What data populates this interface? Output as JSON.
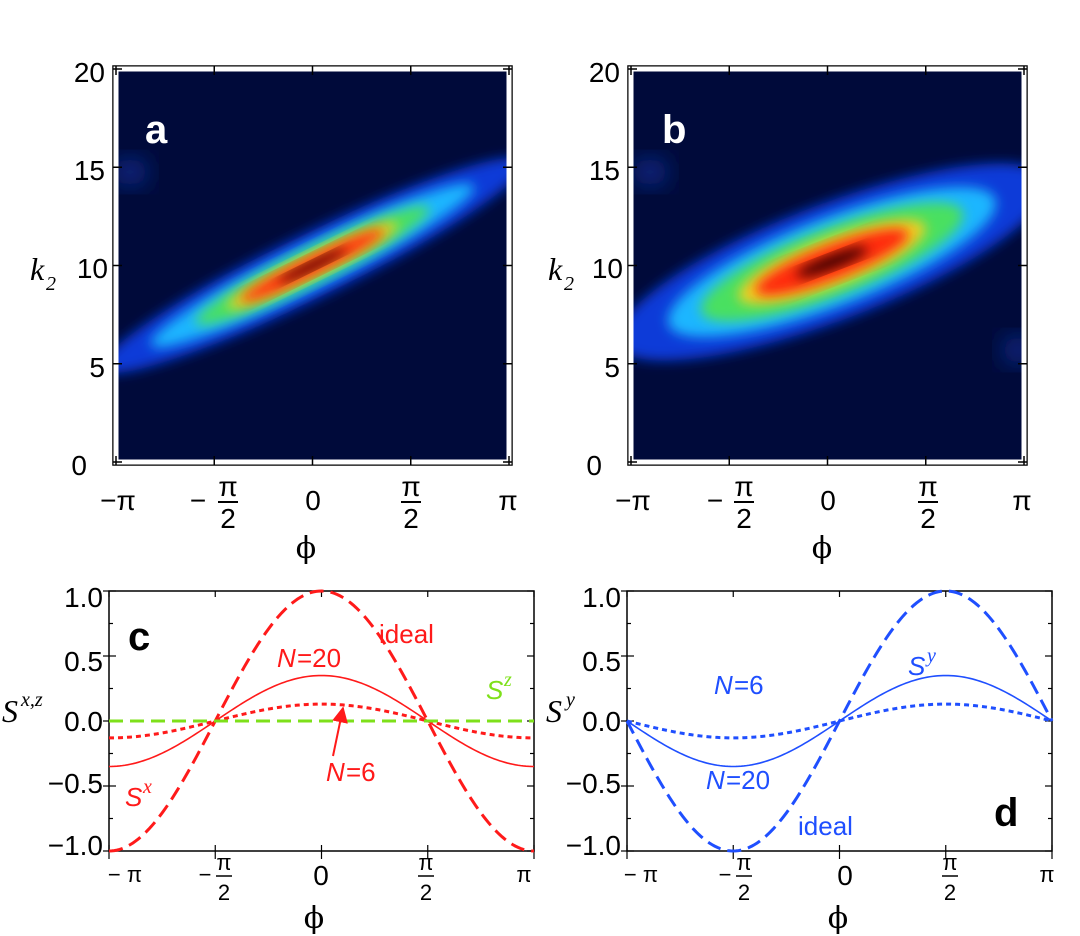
{
  "panel_labels": [
    "a",
    "b",
    "c",
    "d"
  ],
  "colors": {
    "red": "#ff1a1a",
    "blue": "#1f4fff",
    "green": "#7ee01a",
    "background": "#000a3a"
  },
  "chart_data": [
    {
      "id": "a",
      "type": "heatmap",
      "xlabel": "ϕ",
      "ylabel": "k₂",
      "xticks": [
        "−π",
        "−π/2",
        "0",
        "π/2",
        "π"
      ],
      "yticks": [
        "0",
        "5",
        "10",
        "15",
        "20"
      ],
      "xlim": [
        -3.1416,
        3.1416
      ],
      "ylim": [
        0,
        20
      ],
      "colormap": [
        "dark-navy",
        "blue",
        "cyan",
        "green",
        "yellow",
        "red",
        "black"
      ],
      "blob": {
        "center": [
          0,
          10
        ],
        "slope": 1.6,
        "along_sigma": 1.15,
        "across_sigma": 0.55,
        "tails_to": [
          [
            -3.14,
            5.5
          ],
          [
            3.14,
            14.5
          ]
        ]
      }
    },
    {
      "id": "b",
      "type": "heatmap",
      "xlabel": "ϕ",
      "ylabel": "k₂",
      "xticks": [
        "−π",
        "−π/2",
        "0",
        "π/2",
        "π"
      ],
      "yticks": [
        "0",
        "5",
        "10",
        "15",
        "20"
      ],
      "xlim": [
        -3.1416,
        3.1416
      ],
      "ylim": [
        0,
        20
      ],
      "colormap": [
        "dark-navy",
        "blue",
        "cyan",
        "green",
        "yellow",
        "red",
        "black"
      ],
      "blob": {
        "center": [
          0,
          10
        ],
        "slope": 1.4,
        "along_sigma": 1.25,
        "across_sigma": 1.05,
        "tails_to": [
          [
            -3.14,
            5.5
          ],
          [
            3.14,
            14.5
          ]
        ]
      }
    },
    {
      "id": "c",
      "type": "line",
      "xlabel": "ϕ",
      "ylabel": "S^{x,z}",
      "xticks": [
        "− π",
        "− π/2",
        "0",
        "π/2",
        "π"
      ],
      "yticks": [
        "−1.0",
        "−0.5",
        "0.0",
        "0.5",
        "1.0"
      ],
      "xlim": [
        -3.1416,
        3.1416
      ],
      "ylim": [
        -1.0,
        1.0
      ],
      "series": [
        {
          "name": "ideal",
          "function": "cos",
          "amplitude": 1.0,
          "style": "dashed",
          "color": "red"
        },
        {
          "name": "N=20",
          "function": "cos",
          "amplitude": 0.35,
          "style": "solid",
          "color": "red"
        },
        {
          "name": "N=6",
          "function": "cos",
          "amplitude": 0.13,
          "style": "dotted",
          "color": "red"
        },
        {
          "name": "S^z",
          "function": "const",
          "amplitude": 0.0,
          "style": "dashed",
          "color": "green"
        }
      ],
      "annotations": {
        "ideal": "ideal",
        "n20_N": "N",
        "n20_val": "=20",
        "n6_N": "N",
        "n6_val": "=6",
        "sx_base": "S",
        "sx_sup": "x",
        "sz_base": "S",
        "sz_sup": "z"
      }
    },
    {
      "id": "d",
      "type": "line",
      "xlabel": "ϕ",
      "ylabel": "S^y",
      "xticks": [
        "− π",
        "− π/2",
        "0",
        "π/2",
        "π"
      ],
      "yticks": [
        "−1.0",
        "−0.5",
        "0.0",
        "0.5",
        "1.0"
      ],
      "xlim": [
        -3.1416,
        3.1416
      ],
      "ylim": [
        -1.0,
        1.0
      ],
      "series": [
        {
          "name": "ideal",
          "function": "sin",
          "amplitude": 1.0,
          "style": "dashed",
          "color": "blue"
        },
        {
          "name": "N=20",
          "function": "sin",
          "amplitude": 0.35,
          "style": "solid",
          "color": "blue"
        },
        {
          "name": "N=6",
          "function": "sin",
          "amplitude": 0.13,
          "style": "dotted",
          "color": "blue"
        }
      ],
      "annotations": {
        "ideal": "ideal",
        "n20_N": "N",
        "n20_val": "=20",
        "n6_N": "N",
        "n6_val": "=6",
        "sy_base": "S",
        "sy_sup": "y"
      }
    }
  ]
}
